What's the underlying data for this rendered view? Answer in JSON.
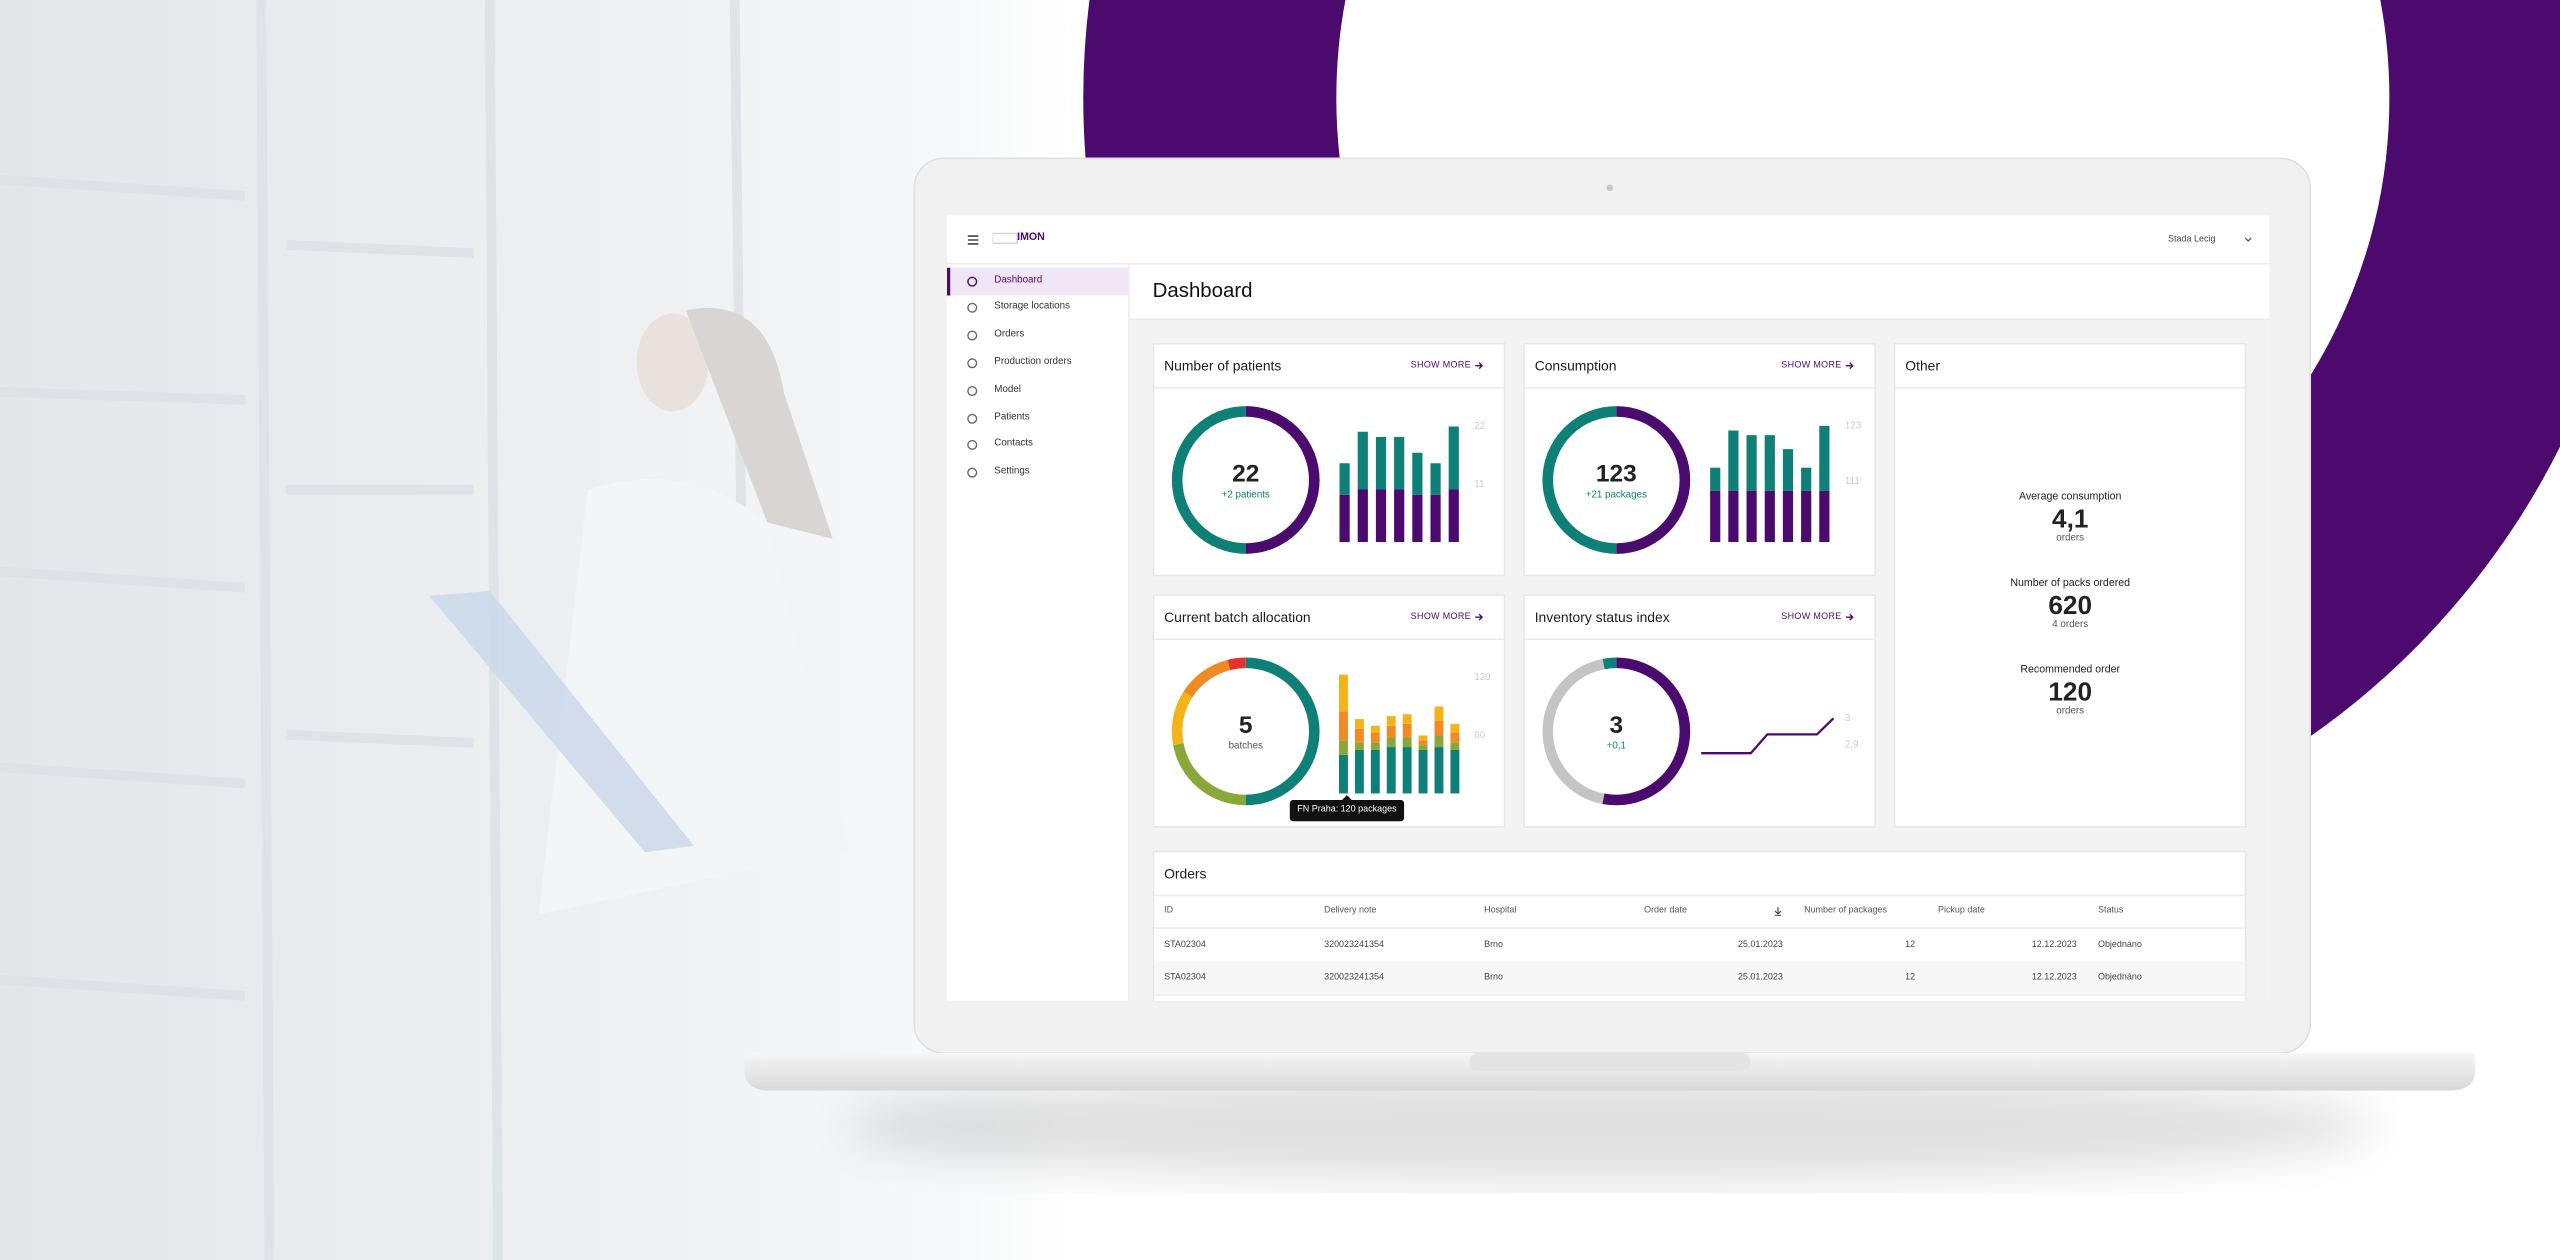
{
  "header": {
    "logo": "IMON",
    "user": "Stada Lecig"
  },
  "sidebar": {
    "items": [
      "Dashboard",
      "Storage locations",
      "Orders",
      "Production orders",
      "Model",
      "Patients",
      "Contacts",
      "Settings"
    ],
    "active": 0
  },
  "page_title": "Dashboard",
  "cards": [
    {
      "title": "Number of patients",
      "link": "SHOW MORE",
      "donut": {
        "value": "22",
        "caption": "+2 patients",
        "caption_color": "#0f8078",
        "segments": [
          {
            "color": "#4b0a6e",
            "value": 50
          },
          {
            "color": "#0f8078",
            "value": 50
          }
        ]
      },
      "chart": {
        "type": "bar",
        "ylim": [
          0,
          23
        ],
        "yticks": [
          11,
          22
        ],
        "series": [
          {
            "color": "#4b0a6e",
            "values": [
              9,
              10,
              10,
              10,
              9,
              9,
              10
            ]
          },
          {
            "color": "#0f8078",
            "values": [
              6,
              11,
              10,
              10,
              8,
              6,
              12
            ]
          }
        ]
      }
    },
    {
      "title": "Consumption",
      "link": "SHOW MORE",
      "donut": {
        "value": "123",
        "caption": "+21 packages",
        "caption_color": "#0f8078",
        "segments": [
          {
            "color": "#4b0a6e",
            "value": 50
          },
          {
            "color": "#0f8078",
            "value": 50
          }
        ]
      },
      "chart": {
        "type": "bar",
        "ylim": [
          98,
          124
        ],
        "yticks": [
          111,
          123
        ],
        "series": [
          {
            "color": "#4b0a6e",
            "values": [
              109,
              109,
              109,
              109,
              109,
              109,
              109
            ]
          },
          {
            "color": "#0f8078",
            "values": [
              5,
              13,
              12,
              12,
              9,
              5,
              14
            ]
          }
        ]
      }
    },
    {
      "title": "Current batch allocation",
      "link": "SHOW MORE",
      "donut": {
        "value": "5",
        "caption": "batches",
        "caption_color": "#555555",
        "segments": [
          {
            "color": "#0f8078",
            "value": 50
          },
          {
            "color": "#8aa83a",
            "value": 22
          },
          {
            "color": "#f2b418",
            "value": 12
          },
          {
            "color": "#f08a24",
            "value": 12
          },
          {
            "color": "#e5322d",
            "value": 4
          }
        ]
      },
      "chart": {
        "type": "bar",
        "ylim": [
          0,
          125
        ],
        "yticks": [
          60,
          120
        ],
        "series": [
          {
            "color": "#0f8078",
            "values": [
              40,
              45,
              45,
              48,
              48,
              45,
              48,
              45
            ]
          },
          {
            "color": "#8aa83a",
            "values": [
              15,
              8,
              8,
              10,
              10,
              5,
              12,
              8
            ]
          },
          {
            "color": "#f08a24",
            "values": [
              30,
              14,
              10,
              12,
              14,
              5,
              15,
              10
            ]
          },
          {
            "color": "#f2b418",
            "values": [
              38,
              10,
              7,
              10,
              10,
              5,
              15,
              9
            ]
          }
        ]
      }
    },
    {
      "title": "Inventory status index",
      "link": "SHOW MORE",
      "donut": {
        "value": "3",
        "caption": "+0,1",
        "caption_color": "#0f8078",
        "segments": [
          {
            "color": "#4b0a6e",
            "value": 53
          },
          {
            "color": "#c4c4c4",
            "value": 44
          },
          {
            "color": "#0f8078",
            "value": 3
          }
        ]
      },
      "chart": {
        "type": "line",
        "ylim": [
          2.72,
          3.17
        ],
        "yticks": [
          {
            "value": 2.9,
            "label": "2,9"
          },
          3
        ],
        "series": [
          {
            "color": "#4b0a6e",
            "values": [
              2.87,
              2.87,
              2.87,
              2.87,
              2.94,
              2.94,
              2.94,
              2.94,
              3
            ]
          }
        ]
      }
    }
  ],
  "tooltip": "FN Praha: 120 packages",
  "other": {
    "title": "Other",
    "items": [
      {
        "label": "Average consumption",
        "value": "4,1",
        "unit": "orders"
      },
      {
        "label": "Number of packs ordered",
        "value": "620",
        "unit": "4 orders"
      },
      {
        "label": "Recommended order",
        "value": "120",
        "unit": "orders"
      }
    ]
  },
  "orders": {
    "title": "Orders",
    "columns": [
      "ID",
      "Delivery note",
      "Hospital",
      "Order date",
      "Number of packages",
      "Pickup date",
      "Status"
    ],
    "rows": [
      [
        "STA02304",
        "320023241354",
        "Brno",
        "25.01.2023",
        12,
        "12.12.2023",
        "Objednáno"
      ],
      [
        "STA02304",
        "320023241354",
        "Brno",
        "25.01.2023",
        12,
        "12.12.2023",
        "Objednáno"
      ]
    ]
  }
}
